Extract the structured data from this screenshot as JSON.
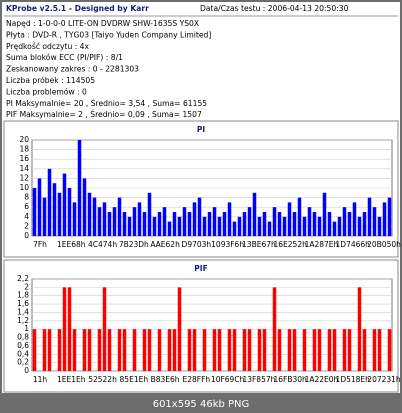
{
  "header": {
    "title": "KProbe v2.5.1 - Designed by Karr",
    "datetime": "Data/Czas testu : 2006-04-13 20:50:30",
    "lines": [
      "Napęd : 1-0-0-0 LITE-ON DVDRW SHW-1635S  YS0X",
      "Płyta : DVD-R , TYG03 [Taiyo Yuden Company Limited]",
      "Prędkość odczytu : 4x",
      "Suma bloków ECC (PI/PIF) : 8/1",
      "Zeskanowany zakres : 0 - 2281303",
      "Liczba próbek : 114505",
      "Liczba problemów : 0",
      "PI Maksymalnie= 20 , Średnio= 3,54 , Suma= 61155",
      "PIF Maksymalnie= 2 , Średnio= 0,09 , Suma= 1507"
    ]
  },
  "chart_data": [
    {
      "type": "bar",
      "title": "PI",
      "color": "#0000ff",
      "grid": true,
      "xticklabels": [
        "7Fh",
        "1EE68h",
        "4C474h",
        "7B23Dh",
        "AAE62h",
        "D9703h",
        "1093F6h",
        "13BE67h",
        "16E252h",
        "1A287Eh",
        "1D7466h",
        "20B050h"
      ],
      "values": [
        10,
        12,
        8,
        14,
        11,
        9,
        13,
        10,
        7,
        20,
        12,
        9,
        8,
        6,
        7,
        5,
        6,
        8,
        5,
        4,
        6,
        7,
        5,
        9,
        4,
        5,
        6,
        3,
        5,
        4,
        6,
        5,
        7,
        8,
        4,
        5,
        6,
        4,
        5,
        7,
        3,
        4,
        5,
        6,
        9,
        4,
        5,
        3,
        6,
        5,
        4,
        7,
        5,
        8,
        4,
        6,
        5,
        4,
        9,
        5,
        3,
        4,
        6,
        5,
        7,
        4,
        5,
        8,
        6,
        4,
        7,
        8
      ],
      "ylim": [
        0,
        20
      ],
      "yticks": [
        0,
        2,
        4,
        6,
        8,
        10,
        12,
        14,
        16,
        18,
        20
      ]
    },
    {
      "type": "bar",
      "title": "PIF",
      "color": "#ff0000",
      "grid": true,
      "xticklabels": [
        "11h",
        "1EE1Eh",
        "52522h",
        "85E1Eh",
        "B83E6h",
        "E28FFh",
        "10F69Ch",
        "13F857h",
        "16FB30h",
        "1A22E0h",
        "1D518Eh",
        "207231h"
      ],
      "values": [
        1,
        0,
        1,
        1,
        0,
        1,
        2,
        2,
        1,
        0,
        1,
        1,
        0,
        1,
        2,
        1,
        0,
        1,
        1,
        0,
        1,
        0,
        1,
        1,
        0,
        1,
        0,
        1,
        1,
        2,
        0,
        1,
        1,
        0,
        1,
        0,
        1,
        1,
        0,
        1,
        1,
        0,
        1,
        1,
        0,
        1,
        1,
        0,
        2,
        1,
        0,
        1,
        1,
        0,
        1,
        0,
        1,
        1,
        0,
        1,
        1,
        0,
        1,
        1,
        0,
        2,
        1,
        0,
        1,
        1,
        0,
        1
      ],
      "ylim": [
        0,
        2.2
      ],
      "yticks": [
        0,
        {
          "value": 0.2,
          "label": "0,2"
        },
        {
          "value": 0.4,
          "label": "0,4"
        },
        {
          "value": 0.6,
          "label": "0,6"
        },
        {
          "value": 0.8,
          "label": "0,8"
        },
        1,
        {
          "value": 1.2,
          "label": "1,2"
        },
        {
          "value": 1.4,
          "label": "1,4"
        },
        {
          "value": 1.6,
          "label": "1,6"
        },
        {
          "value": 1.8,
          "label": "1,8"
        },
        2,
        {
          "value": 2.2,
          "label": "2,2"
        }
      ]
    }
  ],
  "caption": "601x595 46kb PNG"
}
